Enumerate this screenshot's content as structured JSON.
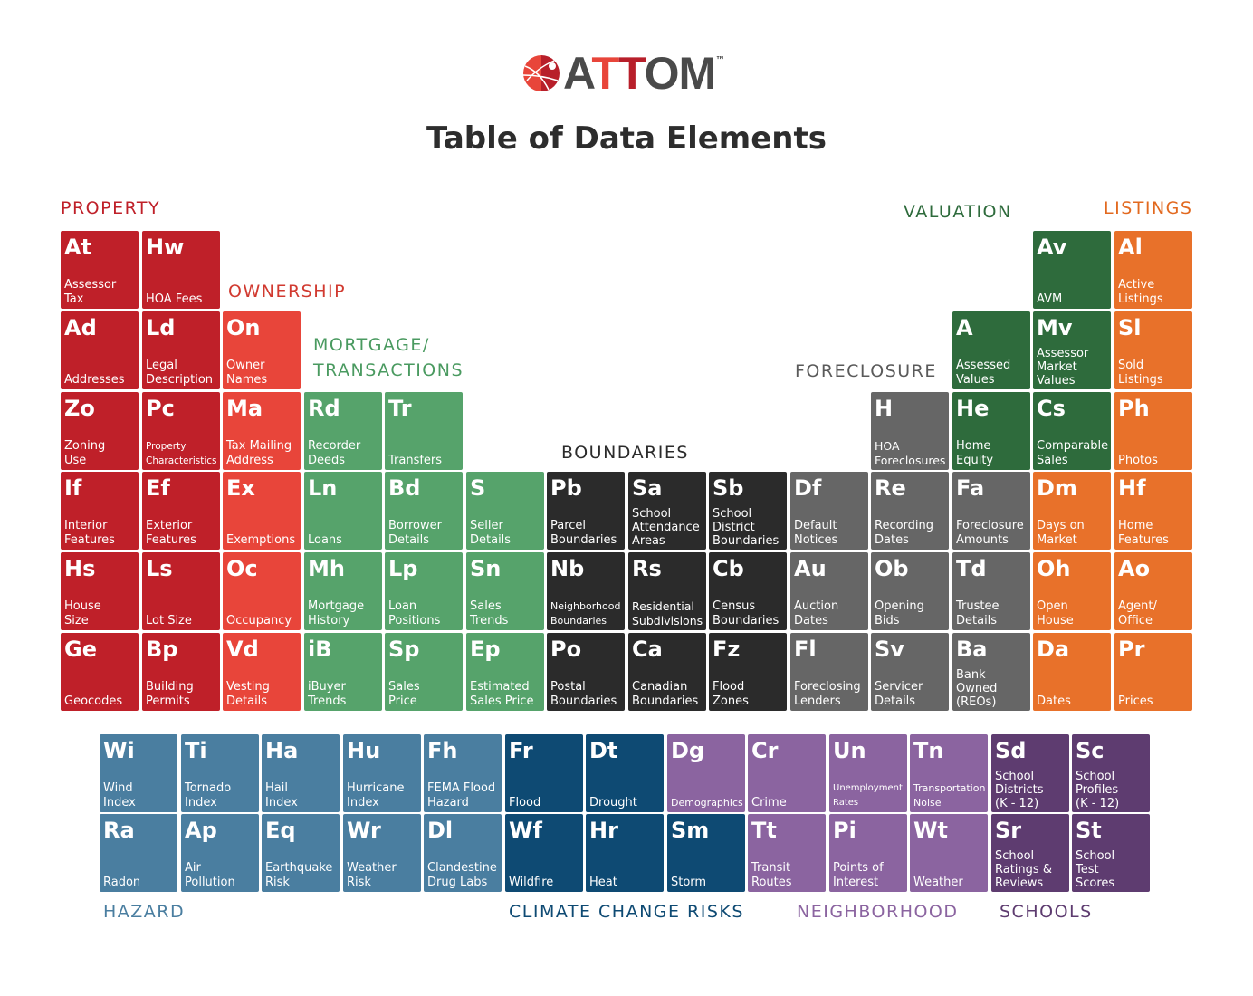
{
  "logo": {
    "text": "ATTOM",
    "trademark": "™"
  },
  "title": "Table of Data Elements",
  "categories": [
    {
      "label": "PROPERTY",
      "color": "#bf2029",
      "cells": [
        {
          "symbol": "At",
          "name": "Assessor\nTax"
        },
        {
          "symbol": "Hw",
          "name": "HOA Fees"
        },
        {
          "symbol": "Ad",
          "name": "Addresses"
        },
        {
          "symbol": "Ld",
          "name": "Legal\nDescription"
        },
        {
          "symbol": "Zo",
          "name": "Zoning\nUse"
        },
        {
          "symbol": "Pc",
          "name": "Property\nCharacteristics"
        },
        {
          "symbol": "If",
          "name": "Interior\nFeatures"
        },
        {
          "symbol": "Ef",
          "name": "Exterior\nFeatures"
        },
        {
          "symbol": "Hs",
          "name": "House\nSize"
        },
        {
          "symbol": "Ls",
          "name": "Lot Size"
        },
        {
          "symbol": "Ge",
          "name": "Geocodes"
        },
        {
          "symbol": "Bp",
          "name": "Building\nPermits"
        }
      ]
    },
    {
      "label": "OWNERSHIP",
      "color": "#e8453a",
      "label_color": "#d13a30",
      "cells": [
        {
          "symbol": "On",
          "name": "Owner\nNames"
        },
        {
          "symbol": "Ma",
          "name": "Tax Mailing\nAddress"
        },
        {
          "symbol": "Ex",
          "name": "Exemptions"
        },
        {
          "symbol": "Oc",
          "name": "Occupancy"
        },
        {
          "symbol": "Vd",
          "name": "Vesting\nDetails"
        }
      ]
    },
    {
      "label": "MORTGAGE/\nTRANSACTIONS",
      "color": "#56a36b",
      "label_color": "#4a9a60",
      "cells": [
        {
          "symbol": "Rd",
          "name": "Recorder\nDeeds"
        },
        {
          "symbol": "Tr",
          "name": "Transfers"
        },
        {
          "symbol": "Ln",
          "name": "Loans"
        },
        {
          "symbol": "Bd",
          "name": "Borrower\nDetails"
        },
        {
          "symbol": "S",
          "name": "Seller\nDetails"
        },
        {
          "symbol": "Mh",
          "name": "Mortgage\nHistory"
        },
        {
          "symbol": "Lp",
          "name": "Loan\nPositions"
        },
        {
          "symbol": "Sn",
          "name": "Sales\nTrends"
        },
        {
          "symbol": "iB",
          "name": "iBuyer\nTrends"
        },
        {
          "symbol": "Sp",
          "name": "Sales\nPrice"
        },
        {
          "symbol": "Ep",
          "name": "Estimated\nSales Price"
        }
      ]
    },
    {
      "label": "BOUNDARIES",
      "color": "#2b2b2b",
      "cells": [
        {
          "symbol": "Pb",
          "name": "Parcel\nBoundaries"
        },
        {
          "symbol": "Sa",
          "name": "School\nAttendance\nAreas"
        },
        {
          "symbol": "Sb",
          "name": "School\nDistrict\nBoundaries"
        },
        {
          "symbol": "Nb",
          "name": "Neighborhood\nBoundaries"
        },
        {
          "symbol": "Rs",
          "name": "Residential\nSubdivisions"
        },
        {
          "symbol": "Cb",
          "name": "Census\nBoundaries"
        },
        {
          "symbol": "Po",
          "name": "Postal\nBoundaries"
        },
        {
          "symbol": "Ca",
          "name": "Canadian\nBoundaries"
        },
        {
          "symbol": "Fz",
          "name": "Flood\nZones"
        }
      ]
    },
    {
      "label": "FORECLOSURE",
      "color": "#666666",
      "label_color": "#5a5a5a",
      "cells": [
        {
          "symbol": "H",
          "name": "HOA\nForeclosures"
        },
        {
          "symbol": "Df",
          "name": "Default\nNotices"
        },
        {
          "symbol": "Re",
          "name": "Recording\nDates"
        },
        {
          "symbol": "Fa",
          "name": "Foreclosure\nAmounts"
        },
        {
          "symbol": "Au",
          "name": "Auction\nDates"
        },
        {
          "symbol": "Ob",
          "name": "Opening\nBids"
        },
        {
          "symbol": "Td",
          "name": "Trustee\nDetails"
        },
        {
          "symbol": "Fl",
          "name": "Foreclosing\nLenders"
        },
        {
          "symbol": "Sv",
          "name": "Servicer\nDetails"
        },
        {
          "symbol": "Ba",
          "name": "Bank\nOwned\n(REOs)"
        }
      ]
    },
    {
      "label": "VALUATION",
      "color": "#2e6b3c",
      "cells": [
        {
          "symbol": "Av",
          "name": "AVM"
        },
        {
          "symbol": "A",
          "name": "Assessed\nValues"
        },
        {
          "symbol": "Mv",
          "name": "Assessor\nMarket\nValues"
        },
        {
          "symbol": "He",
          "name": "Home\nEquity"
        },
        {
          "symbol": "Cs",
          "name": "Comparable\nSales"
        }
      ]
    },
    {
      "label": "LISTINGS",
      "color": "#e8712a",
      "label_color": "#e2691f",
      "cells": [
        {
          "symbol": "Al",
          "name": "Active\nListings"
        },
        {
          "symbol": "Sl",
          "name": "Sold\nListings"
        },
        {
          "symbol": "Ph",
          "name": "Photos"
        },
        {
          "symbol": "Dm",
          "name": "Days on\nMarket"
        },
        {
          "symbol": "Hf",
          "name": "Home\nFeatures"
        },
        {
          "symbol": "Oh",
          "name": "Open\nHouse"
        },
        {
          "symbol": "Ao",
          "name": "Agent/\nOffice"
        },
        {
          "symbol": "Da",
          "name": "Dates"
        },
        {
          "symbol": "Pr",
          "name": "Prices"
        }
      ]
    },
    {
      "label": "HAZARD",
      "color": "#4a7ea0",
      "label_color": "#4a7ea0",
      "cells": [
        {
          "symbol": "Wi",
          "name": "Wind\nIndex"
        },
        {
          "symbol": "Ti",
          "name": "Tornado\nIndex"
        },
        {
          "symbol": "Ha",
          "name": "Hail\nIndex"
        },
        {
          "symbol": "Hu",
          "name": "Hurricane\nIndex"
        },
        {
          "symbol": "Fh",
          "name": "FEMA Flood\nHazard"
        },
        {
          "symbol": "Ra",
          "name": "Radon"
        },
        {
          "symbol": "Ap",
          "name": "Air\nPollution"
        },
        {
          "symbol": "Eq",
          "name": "Earthquake\nRisk"
        },
        {
          "symbol": "Wr",
          "name": "Weather\nRisk"
        },
        {
          "symbol": "Dl",
          "name": "Clandestine\nDrug Labs"
        }
      ]
    },
    {
      "label": "CLIMATE CHANGE RISKS",
      "color": "#0e4a73",
      "label_color": "#0e4a73",
      "cells": [
        {
          "symbol": "Fr",
          "name": "Flood"
        },
        {
          "symbol": "Dt",
          "name": "Drought"
        },
        {
          "symbol": "Wf",
          "name": "Wildfire"
        },
        {
          "symbol": "Hr",
          "name": "Heat"
        },
        {
          "symbol": "Sm",
          "name": "Storm"
        }
      ]
    },
    {
      "label": "NEIGHBORHOOD",
      "color": "#8b64a0",
      "label_color": "#8b64a0",
      "cells": [
        {
          "symbol": "Dg",
          "name": "Demographics"
        },
        {
          "symbol": "Cr",
          "name": "Crime"
        },
        {
          "symbol": "Un",
          "name": "Unemployment\nRates"
        },
        {
          "symbol": "Tn",
          "name": "Transportation\nNoise"
        },
        {
          "symbol": "Tt",
          "name": "Transit\nRoutes"
        },
        {
          "symbol": "Pi",
          "name": "Points of\nInterest"
        },
        {
          "symbol": "Wt",
          "name": "Weather"
        }
      ]
    },
    {
      "label": "SCHOOLS",
      "color": "#5e3c70",
      "label_color": "#5e3c70",
      "cells": [
        {
          "symbol": "Sd",
          "name": "School\nDistricts\n(K - 12)"
        },
        {
          "symbol": "Sc",
          "name": "School\nProfiles\n(K - 12)"
        },
        {
          "symbol": "Sr",
          "name": "School\nRatings &\nReviews"
        },
        {
          "symbol": "St",
          "name": "School\nTest\nScores"
        }
      ]
    }
  ]
}
